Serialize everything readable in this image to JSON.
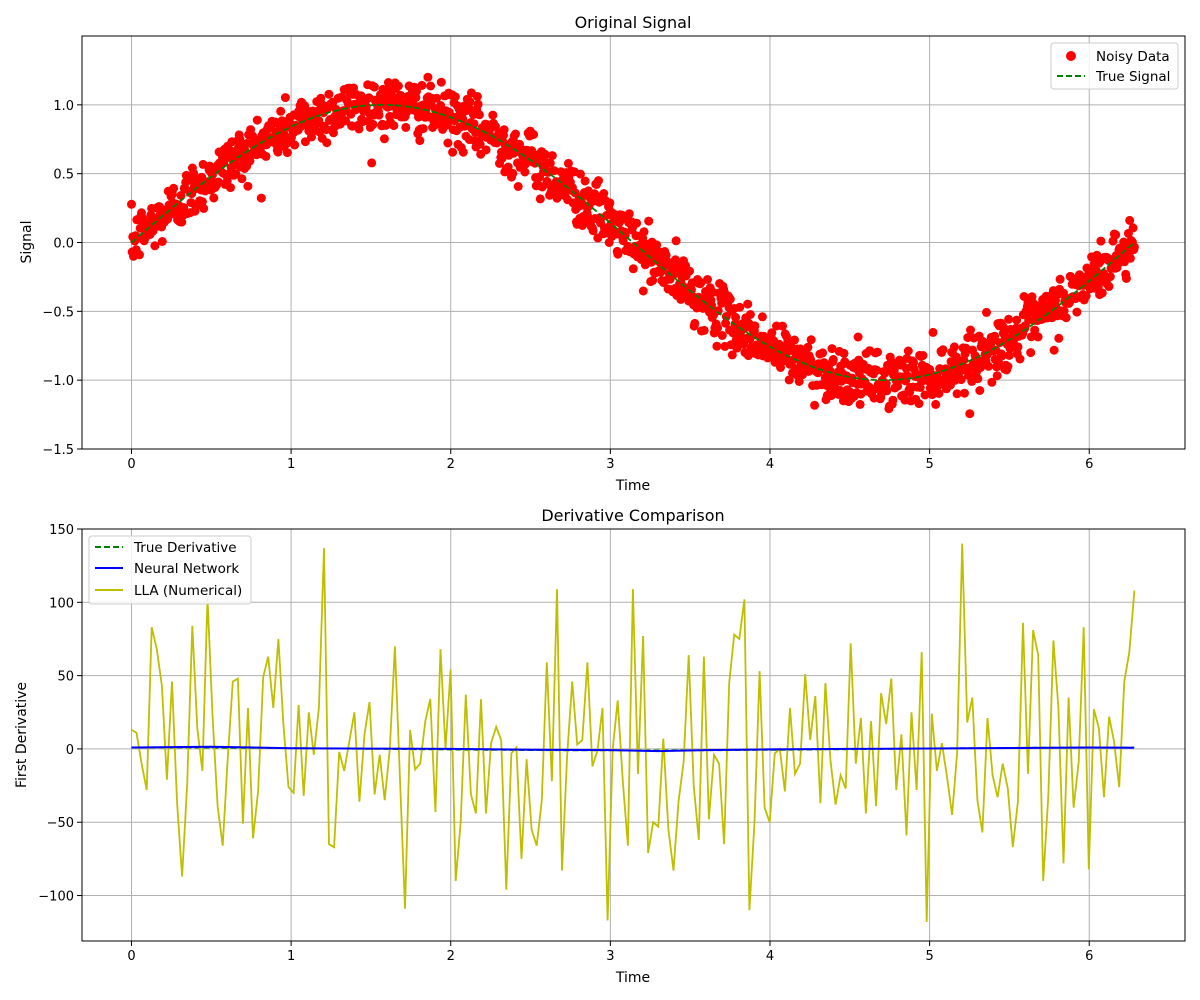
{
  "chart_data": [
    {
      "type": "scatter",
      "title": "Original Signal",
      "xlabel": "Time",
      "ylabel": "Signal",
      "xlim": [
        -0.31,
        6.6
      ],
      "ylim": [
        -1.5,
        1.5
      ],
      "xticks": [
        0,
        1,
        2,
        3,
        4,
        5,
        6
      ],
      "xtick_labels": [
        "0",
        "1",
        "2",
        "3",
        "4",
        "5",
        "6"
      ],
      "yticks": [
        -1.5,
        -1.0,
        -0.5,
        0.0,
        0.5,
        1.0
      ],
      "ytick_labels": [
        "−1.5",
        "−1.0",
        "−0.5",
        "0.0",
        "0.5",
        "1.0"
      ],
      "grid": true,
      "legend_position": "top-right",
      "series": [
        {
          "name": "Noisy Data",
          "kind": "scatter",
          "color": "#ff0000",
          "description": "sin(t) plus noise (std about 0.1) sampled densely over t in [0, 2π]",
          "x_range": [
            0,
            6.283
          ],
          "y_function": "sin",
          "noise_std": 0.1,
          "n_points": 1500
        },
        {
          "name": "True Signal",
          "kind": "line",
          "style": "dashed",
          "color": "#008000",
          "y_function": "sin",
          "x_range": [
            0,
            6.283
          ]
        }
      ]
    },
    {
      "type": "line",
      "title": "Derivative Comparison",
      "xlabel": "Time",
      "ylabel": "First Derivative",
      "xlim": [
        -0.31,
        6.6
      ],
      "ylim": [
        -131,
        150
      ],
      "xticks": [
        0,
        1,
        2,
        3,
        4,
        5,
        6
      ],
      "xtick_labels": [
        "0",
        "1",
        "2",
        "3",
        "4",
        "5",
        "6"
      ],
      "yticks": [
        -100,
        -50,
        0,
        50,
        100,
        150
      ],
      "ytick_labels": [
        "−100",
        "−50",
        "0",
        "50",
        "100",
        "150"
      ],
      "grid": true,
      "legend_position": "top-left",
      "series": [
        {
          "name": "True Derivative",
          "style": "dashed",
          "color": "#008000",
          "y_function": "cos",
          "x_range": [
            0,
            6.283
          ]
        },
        {
          "name": "Neural Network",
          "style": "solid",
          "color": "#0000ff",
          "x": [
            0,
            0.5,
            1,
            1.5,
            2,
            2.5,
            3,
            3.3,
            3.6,
            4,
            4.5,
            5,
            5.5,
            6,
            6.28
          ],
          "y": [
            1,
            1.5,
            0.5,
            0.2,
            0,
            -0.5,
            -0.8,
            -1.5,
            -0.8,
            -0.3,
            0,
            0.3,
            0.6,
            1,
            0.8
          ]
        },
        {
          "name": "LLA (Numerical)",
          "style": "solid",
          "color": "#bfbf00",
          "x_start": 0,
          "x_end": 6.283,
          "y": [
            13,
            11,
            -10,
            -28,
            83,
            68,
            43,
            -21,
            46,
            -37,
            -87,
            -24,
            84,
            14,
            -15,
            103,
            23,
            -39,
            -66,
            -7,
            46,
            48,
            -51,
            28,
            -61,
            -29,
            49,
            63,
            28,
            75,
            17,
            -26,
            -30,
            30,
            -32,
            25,
            -4,
            28,
            137,
            -65,
            -67,
            -2,
            -15,
            5,
            25,
            -36,
            10,
            32,
            -31,
            -4,
            -35,
            0,
            70,
            -19,
            -109,
            13,
            -14,
            -10,
            19,
            34,
            -43,
            68,
            0,
            54,
            -90,
            -50,
            37,
            -31,
            -44,
            34,
            -44,
            4,
            15,
            6,
            -96,
            -3,
            1,
            -75,
            -7,
            -55,
            -66,
            -35,
            59,
            -22,
            109,
            -83,
            -5,
            46,
            3,
            6,
            59,
            -12,
            -1,
            28,
            -117,
            0,
            33,
            -22,
            -66,
            109,
            -17,
            77,
            -71,
            -50,
            -53,
            7,
            -55,
            -83,
            -36,
            -9,
            64,
            -25,
            -62,
            63,
            -48,
            -4,
            -10,
            -65,
            45,
            78,
            75,
            102,
            -110,
            -50,
            53,
            -40,
            -50,
            -3,
            0,
            -29,
            28,
            -17,
            -10,
            51,
            6,
            36,
            -37,
            45,
            -8,
            -38,
            -18,
            -27,
            72,
            -10,
            21,
            -44,
            19,
            -39,
            38,
            17,
            48,
            -28,
            10,
            -59,
            25,
            -28,
            66,
            -118,
            24,
            -15,
            4,
            -19,
            -45,
            -3,
            140,
            18,
            35,
            -35,
            -57,
            21,
            -18,
            -33,
            -10,
            -27,
            -67,
            -36,
            86,
            -17,
            81,
            64,
            -90,
            -32,
            74,
            28,
            -78,
            35,
            -40,
            -9,
            83,
            -82,
            27,
            14,
            -33,
            22,
            5,
            -26,
            46,
            66,
            108
          ]
        }
      ]
    }
  ]
}
